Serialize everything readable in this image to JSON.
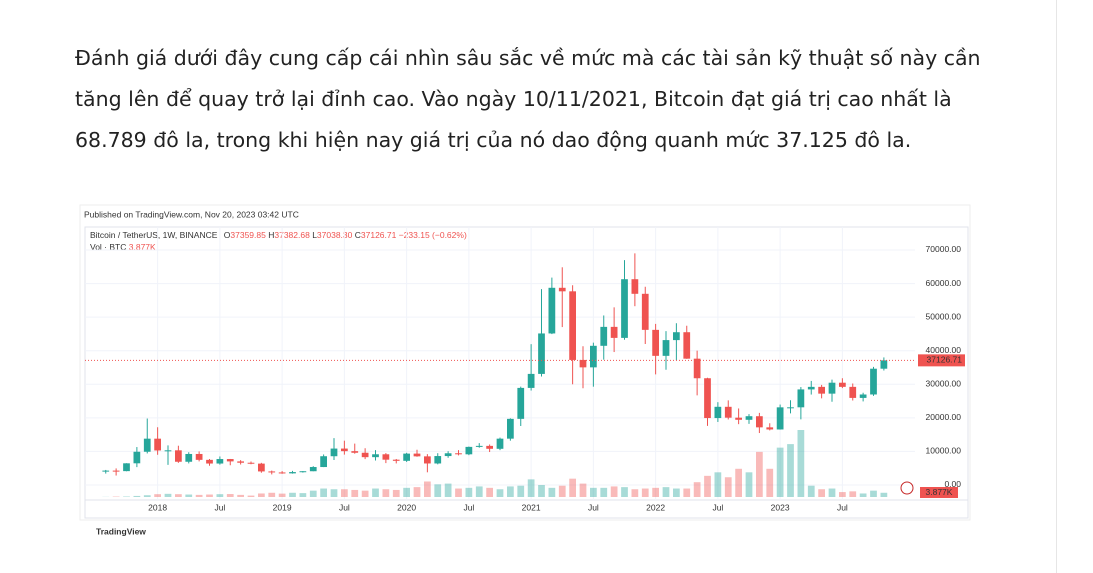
{
  "paragraph": {
    "lines": [
      "Đánh giá dưới đây cung cấp cái nhìn sâu sắc về mức mà các tài sản kỹ thuật số này cần",
      "tăng lên để quay trở lại đỉnh cao. Vào ngày 10/11/2021, Bitcoin đạt giá trị cao nhất là",
      "68.789 đô la, trong khi hiện nay giá trị của nó dao động quanh mức 37.125 đô la."
    ]
  },
  "chart_data": {
    "type": "candlestick",
    "published": "Published on TradingView.com, Nov 20, 2023 03:42 UTC",
    "symbol": "Bitcoin / TetherUS, 1W, BINANCE",
    "ohlc_letters": [
      "O",
      "H",
      "L",
      "C"
    ],
    "ohlc": [
      {
        "value": 37359.85,
        "label": "37359.85"
      },
      {
        "value": 37382.68,
        "label": "37382.68"
      },
      {
        "value": 37038.3,
        "label": "37038.30"
      },
      {
        "value": 37126.71,
        "label": "37126.71"
      }
    ],
    "change": "−233.15 (−0.62%)",
    "volume_title": "Vol · BTC",
    "volume_last": {
      "value": 3877,
      "label": "3.877K"
    },
    "last_price": 37126.71,
    "up_color": "#26a69a",
    "down_color": "#ef5350",
    "x": [
      "2017-08",
      "2017-09",
      "2017-10",
      "2017-11",
      "2017-12",
      "2018-01",
      "2018-02",
      "2018-03",
      "2018-04",
      "2018-05",
      "2018-06",
      "2018-07",
      "2018-08",
      "2018-09",
      "2018-10",
      "2018-11",
      "2018-12",
      "2019-01",
      "2019-02",
      "2019-03",
      "2019-04",
      "2019-05",
      "2019-06",
      "2019-07",
      "2019-08",
      "2019-09",
      "2019-10",
      "2019-11",
      "2019-12",
      "2020-01",
      "2020-02",
      "2020-03",
      "2020-04",
      "2020-05",
      "2020-06",
      "2020-07",
      "2020-08",
      "2020-09",
      "2020-10",
      "2020-11",
      "2020-12",
      "2021-01",
      "2021-02",
      "2021-03",
      "2021-04",
      "2021-05",
      "2021-06",
      "2021-07",
      "2021-08",
      "2021-09",
      "2021-10",
      "2021-11",
      "2021-12",
      "2022-01",
      "2022-02",
      "2022-03",
      "2022-04",
      "2022-05",
      "2022-06",
      "2022-07",
      "2022-08",
      "2022-09",
      "2022-10",
      "2022-11",
      "2022-12",
      "2023-01",
      "2023-02",
      "2023-03",
      "2023-04",
      "2023-05",
      "2023-06",
      "2023-07",
      "2023-08",
      "2023-09",
      "2023-10",
      "2023-11"
    ],
    "open": [
      4261,
      4285,
      4130,
      6460,
      9900,
      13800,
      10290,
      10330,
      6920,
      9240,
      7490,
      6390,
      7730,
      7030,
      6630,
      6370,
      4040,
      3740,
      3460,
      3850,
      4100,
      5350,
      8570,
      10850,
      10080,
      9600,
      8290,
      9150,
      7540,
      7200,
      9350,
      8530,
      6410,
      8620,
      9450,
      9140,
      11350,
      11650,
      10780,
      13800,
      19700,
      28920,
      33090,
      45140,
      58740,
      57690,
      37250,
      35040,
      41460,
      47100,
      43820,
      61300,
      56950,
      46210,
      38470,
      43160,
      45510,
      37630,
      31800,
      19940,
      23290,
      20050,
      19420,
      20490,
      17170,
      16540,
      23130,
      23140,
      28470,
      29230,
      27210,
      30470,
      29230,
      25940,
      26960,
      34640
    ],
    "high": [
      4485,
      4940,
      6470,
      11300,
      19800,
      17200,
      11800,
      11700,
      9760,
      10000,
      7760,
      8500,
      7760,
      7410,
      7000,
      6600,
      4300,
      4140,
      4200,
      4150,
      5600,
      9100,
      13970,
      13200,
      12330,
      10950,
      10370,
      9500,
      7750,
      9580,
      10500,
      9190,
      9470,
      10070,
      10380,
      11450,
      12470,
      12070,
      14100,
      19860,
      29300,
      41950,
      58350,
      61780,
      64850,
      59500,
      41330,
      42400,
      50500,
      52920,
      67000,
      69000,
      59050,
      47990,
      45820,
      48190,
      47440,
      40020,
      31950,
      24670,
      25210,
      22800,
      21100,
      21480,
      18390,
      23960,
      25250,
      29180,
      31000,
      29820,
      31390,
      31800,
      30240,
      27480,
      35200,
      38000
    ],
    "low": [
      3400,
      2817,
      4110,
      5325,
      9400,
      9000,
      6000,
      6600,
      6430,
      7030,
      5750,
      6070,
      5880,
      6100,
      6180,
      3650,
      3150,
      3350,
      3380,
      3690,
      4100,
      5330,
      7450,
      9050,
      9320,
      7710,
      7300,
      6520,
      6430,
      6870,
      8400,
      3780,
      6150,
      8110,
      8830,
      8890,
      11100,
      9820,
      10370,
      13200,
      17570,
      28130,
      32300,
      44950,
      47040,
      30000,
      28800,
      29280,
      37330,
      39600,
      43280,
      53260,
      42000,
      32950,
      34320,
      37150,
      37580,
      26700,
      17620,
      18780,
      19520,
      18120,
      18190,
      15480,
      16260,
      16500,
      21350,
      19550,
      26940,
      25810,
      24800,
      28860,
      25170,
      24900,
      26540,
      34100
    ],
    "close": [
      4285,
      4130,
      6460,
      9900,
      13800,
      10290,
      10330,
      6920,
      9240,
      7490,
      6390,
      7730,
      7030,
      6630,
      6370,
      4040,
      3740,
      3460,
      3850,
      4100,
      5350,
      8570,
      10850,
      10080,
      9600,
      8290,
      9150,
      7540,
      7200,
      9350,
      8530,
      6410,
      8620,
      9450,
      9140,
      11350,
      11650,
      10780,
      13800,
      19700,
      28920,
      33090,
      45140,
      58740,
      57690,
      37250,
      35040,
      41460,
      47100,
      43820,
      61300,
      56950,
      46210,
      38470,
      43160,
      45510,
      37630,
      31800,
      19940,
      23290,
      20050,
      19420,
      20490,
      17170,
      16540,
      23130,
      23140,
      28470,
      29230,
      27210,
      30470,
      29230,
      25940,
      26960,
      34640,
      37126.71
    ],
    "volume": [
      20000,
      60000,
      70000,
      150000,
      250000,
      400000,
      450000,
      400000,
      350000,
      300000,
      350000,
      400000,
      420000,
      300000,
      200000,
      500000,
      600000,
      480000,
      600000,
      550000,
      900000,
      1200000,
      1100000,
      1100000,
      1000000,
      900000,
      1200000,
      1100000,
      1000000,
      1300000,
      1400000,
      2200000,
      1800000,
      1900000,
      1200000,
      1300000,
      1500000,
      1300000,
      1100000,
      1500000,
      1600000,
      2500000,
      1700000,
      1300000,
      1600000,
      2600000,
      1900000,
      1300000,
      1300000,
      1500000,
      1400000,
      1100000,
      1200000,
      1300000,
      1400000,
      1200000,
      1200000,
      2100000,
      3000000,
      3500000,
      2800000,
      4000000,
      3500000,
      6400000,
      4000000,
      7000000,
      7500000,
      9500000,
      1600000,
      1100000,
      1200000,
      700000,
      800000,
      500000,
      900000,
      600000
    ],
    "xlim": [
      "2017-06",
      "2024-02"
    ],
    "xticks": [
      {
        "value": "2018-01",
        "label": "2018"
      },
      {
        "value": "2018-07",
        "label": "Jul"
      },
      {
        "value": "2019-01",
        "label": "2019"
      },
      {
        "value": "2019-07",
        "label": "Jul"
      },
      {
        "value": "2020-01",
        "label": "2020"
      },
      {
        "value": "2020-07",
        "label": "Jul"
      },
      {
        "value": "2021-01",
        "label": "2021"
      },
      {
        "value": "2021-07",
        "label": "Jul"
      },
      {
        "value": "2022-01",
        "label": "2022"
      },
      {
        "value": "2022-07",
        "label": "Jul"
      },
      {
        "value": "2023-01",
        "label": "2023"
      },
      {
        "value": "2023-07",
        "label": "Jul"
      }
    ],
    "ylim": [
      -4470,
      76850
    ],
    "yticks": [
      {
        "value": 0,
        "label": "0.00"
      },
      {
        "value": 10000,
        "label": "10000.00"
      },
      {
        "value": 20000,
        "label": "20000.00"
      },
      {
        "value": 30000,
        "label": "30000.00"
      },
      {
        "value": 40000,
        "label": "40000.00"
      },
      {
        "value": 50000,
        "label": "50000.00"
      },
      {
        "value": 60000,
        "label": "60000.00"
      },
      {
        "value": 70000,
        "label": "70000.00"
      }
    ],
    "grid": true,
    "branding": "TradingView"
  }
}
